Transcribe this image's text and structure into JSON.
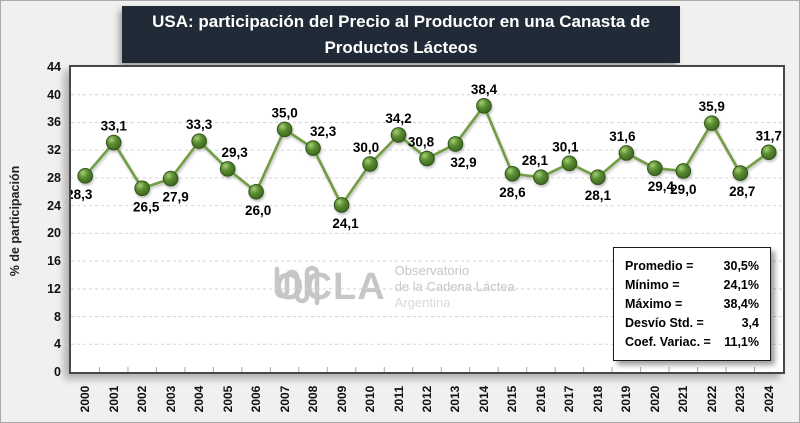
{
  "title": {
    "line1": "USA: participación del Precio al Productor en una Canasta de",
    "line2": "Productos Lácteos"
  },
  "y_axis": {
    "title": "% de participación",
    "ticks": [
      0,
      4,
      8,
      12,
      16,
      20,
      24,
      28,
      32,
      36,
      40,
      44
    ]
  },
  "watermark": {
    "name": "OCLA",
    "sub_line1": "Observatorio",
    "sub_line2": "de la Cadena Láctea",
    "sub_line3": "Argentina"
  },
  "stats_box": {
    "rows": [
      {
        "label": "Promedio =",
        "value": "30,5%"
      },
      {
        "label": "Mínimo =",
        "value": "24,1%"
      },
      {
        "label": "Máximo =",
        "value": "38,4%"
      },
      {
        "label": "Desvío Std. =",
        "value": "3,4"
      },
      {
        "label": "Coef. Variac. =",
        "value": "11,1%"
      }
    ]
  },
  "chart_data": {
    "type": "line",
    "title": "USA: participación del Precio al Productor en una Canasta de Productos Lácteos",
    "xlabel": "",
    "ylabel": "% de participación",
    "ylim": [
      0,
      44
    ],
    "grid": "horizontal-dashed",
    "legend": "none",
    "x": [
      2000,
      2001,
      2002,
      2003,
      2004,
      2005,
      2006,
      2007,
      2008,
      2009,
      2010,
      2011,
      2012,
      2013,
      2014,
      2015,
      2016,
      2017,
      2018,
      2019,
      2020,
      2021,
      2022,
      2023,
      2024
    ],
    "values": [
      28.3,
      33.1,
      26.5,
      27.9,
      33.3,
      29.3,
      26.0,
      35.0,
      32.3,
      24.1,
      30.0,
      34.2,
      30.8,
      32.9,
      38.4,
      28.6,
      28.1,
      30.1,
      28.1,
      31.6,
      29.4,
      29.0,
      35.9,
      28.7,
      31.7
    ],
    "point_labels": [
      "28,3",
      "33,1",
      "26,5",
      "27,9",
      "33,3",
      "29,3",
      "26,0",
      "35,0",
      "32,3",
      "24,1",
      "30,0",
      "34,2",
      "30,8",
      "32,9",
      "38,4",
      "28,6",
      "28,1",
      "30,1",
      "28,1",
      "31,6",
      "29,4",
      "29,0",
      "35,9",
      "28,7",
      "31,7"
    ],
    "label_pos": [
      "below",
      "above",
      "below",
      "below",
      "above",
      "above",
      "below",
      "above",
      "above",
      "below",
      "above",
      "above",
      "above",
      "below",
      "above",
      "below",
      "above",
      "above",
      "below",
      "above",
      "below",
      "below",
      "above",
      "below",
      "above"
    ],
    "label_dx": [
      -6,
      0,
      4,
      5,
      0,
      7,
      2,
      0,
      10,
      4,
      -4,
      0,
      -6,
      8,
      0,
      0,
      -6,
      -4,
      0,
      -4,
      6,
      0,
      0,
      2,
      0
    ],
    "colors": {
      "line": "#6f9e41",
      "marker_dark": "#3b6620",
      "marker_mid": "#5a8c31",
      "marker_light": "#a6cf74",
      "marker_stroke": "#2f5418",
      "grid": "#d4d4d4",
      "title_bg": "#212b38",
      "label_text": "#000000"
    }
  }
}
